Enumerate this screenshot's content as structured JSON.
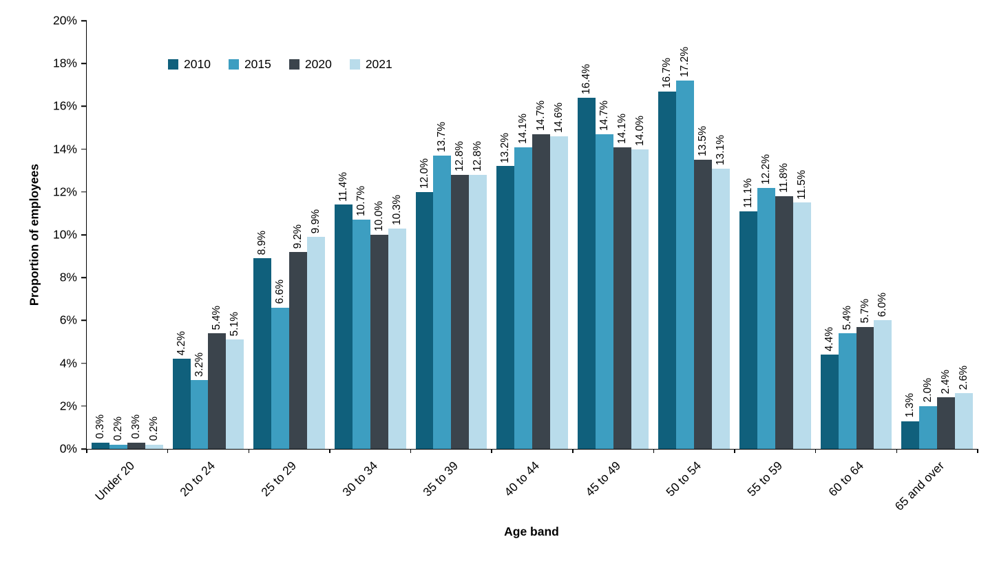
{
  "chart_data": {
    "type": "bar",
    "title": "",
    "xlabel": "Age band",
    "ylabel": "Proportion of employees",
    "categories": [
      "Under 20",
      "20 to 24",
      "25 to 29",
      "30 to 34",
      "35 to 39",
      "40 to 44",
      "45 to 49",
      "50 to 54",
      "55 to 59",
      "60 to 64",
      "65 and over"
    ],
    "series": [
      {
        "name": "2010",
        "color": "#10607c",
        "values": [
          0.3,
          4.2,
          8.9,
          11.4,
          12.0,
          13.2,
          16.4,
          16.7,
          11.1,
          4.4,
          1.3
        ]
      },
      {
        "name": "2015",
        "color": "#3d9ec1",
        "values": [
          0.2,
          3.2,
          6.6,
          10.7,
          13.7,
          14.1,
          14.7,
          17.2,
          12.2,
          5.4,
          2.0
        ]
      },
      {
        "name": "2020",
        "color": "#3b444c",
        "values": [
          0.3,
          5.4,
          9.2,
          10.0,
          12.8,
          14.7,
          14.1,
          13.5,
          11.8,
          5.7,
          2.4
        ]
      },
      {
        "name": "2021",
        "color": "#b9dceb",
        "values": [
          0.2,
          5.1,
          9.9,
          10.3,
          12.8,
          14.6,
          14.0,
          13.1,
          11.5,
          6.0,
          2.6
        ]
      }
    ],
    "ylim": [
      0,
      20
    ],
    "ytick_step": 2,
    "ytick_suffix": "%",
    "value_label_suffix": "%",
    "value_label_decimals": 1,
    "legend_position": "top-left",
    "grid": false
  }
}
